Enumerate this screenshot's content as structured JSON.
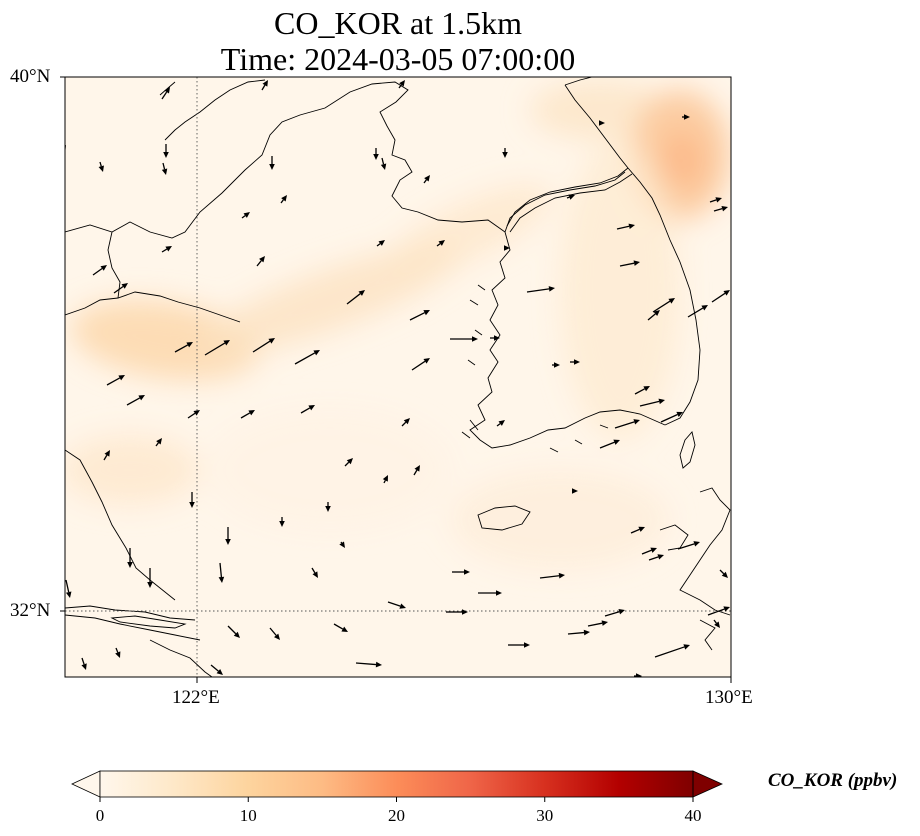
{
  "title": {
    "line1": "CO_KOR at 1.5km",
    "line2": "Time: 2024-03-05 07:00:00"
  },
  "axes": {
    "lat_labels": [
      "40°N",
      "32°N"
    ],
    "lon_labels": [
      "122°E",
      "130°E"
    ],
    "gridlines": "dotted at 122°E and 32°N"
  },
  "colorbar": {
    "label": "CO_KOR (ppbv)",
    "ticks": [
      "0",
      "10",
      "20",
      "30",
      "40"
    ],
    "min": 0,
    "max": 40,
    "colormap": "OrRd",
    "extend": "both",
    "colors": [
      "#fff7ec",
      "#fee8c8",
      "#fdd49e",
      "#fdbb84",
      "#fc8d59",
      "#ef6548",
      "#d7301f",
      "#b30000",
      "#7f0000"
    ]
  },
  "map": {
    "extent": {
      "lon_min": 120,
      "lon_max": 130,
      "lat_min": 31,
      "lat_max": 40
    },
    "land_outline_color": "#000000",
    "wind_arrow_color": "#000000",
    "field_range_ppbv": [
      0,
      12
    ]
  }
}
